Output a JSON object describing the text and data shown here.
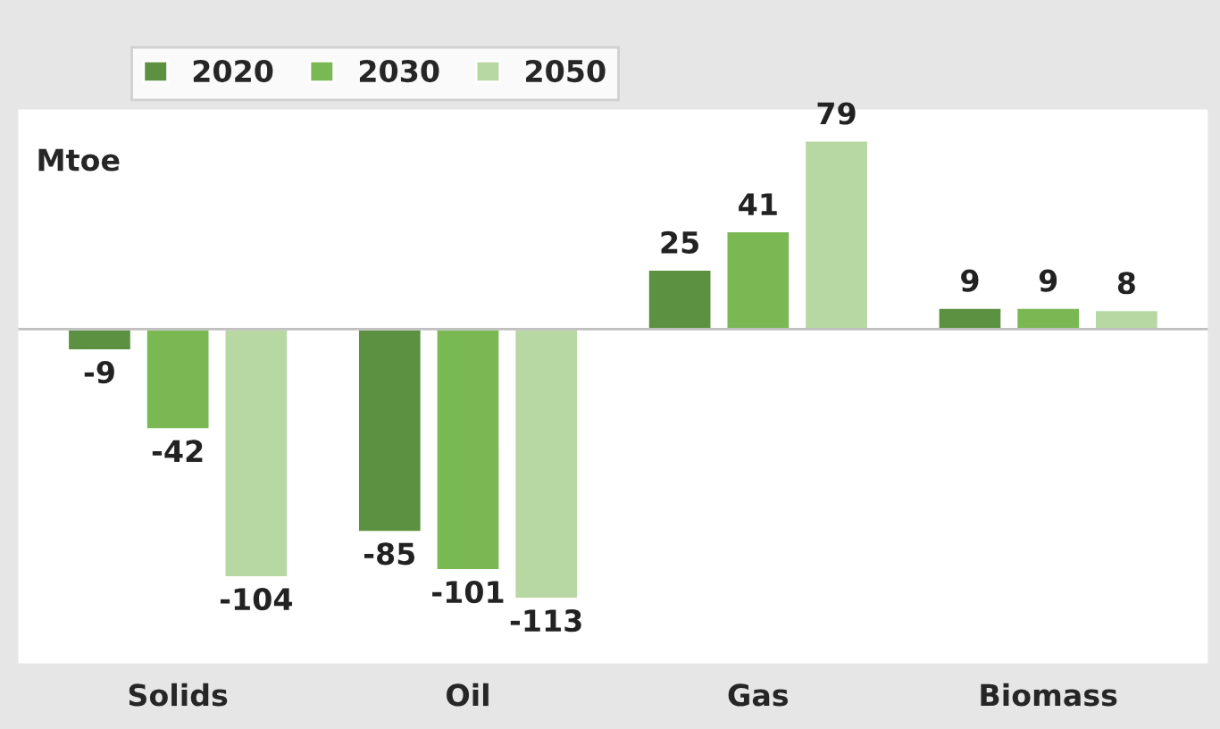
{
  "chart_data": {
    "type": "bar",
    "ylabel": "Mtoe",
    "categories": [
      "Solids",
      "Oil",
      "Gas",
      "Biomass"
    ],
    "series": [
      {
        "name": "2020",
        "color": "#5b9140",
        "values": [
          -9,
          -85,
          25,
          9
        ]
      },
      {
        "name": "2030",
        "color": "#79b852",
        "values": [
          -42,
          -101,
          41,
          9
        ]
      },
      {
        "name": "2050",
        "color": "#b7d7a3",
        "values": [
          -104,
          -113,
          79,
          8
        ]
      }
    ],
    "ylim": [
      -140,
      92
    ],
    "tick_labels": "x",
    "data_labels": true,
    "legend": "top",
    "grid": false
  }
}
